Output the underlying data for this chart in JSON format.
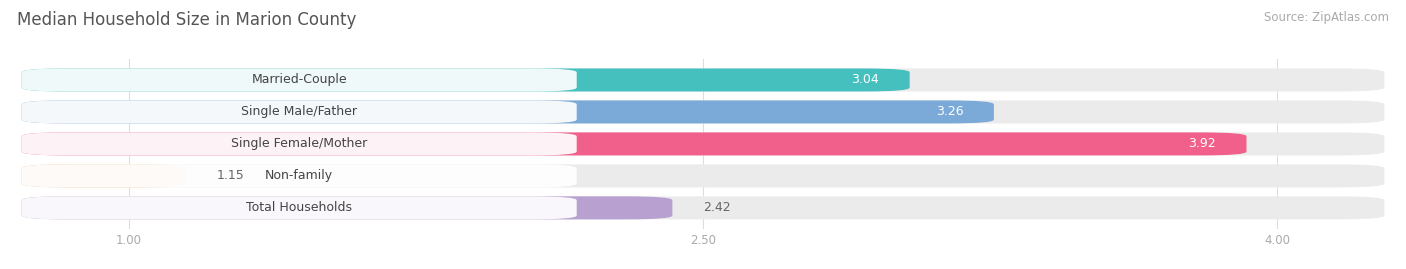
{
  "title": "Median Household Size in Marion County",
  "source": "Source: ZipAtlas.com",
  "categories": [
    "Married-Couple",
    "Single Male/Father",
    "Single Female/Mother",
    "Non-family",
    "Total Households"
  ],
  "values": [
    3.04,
    3.26,
    3.92,
    1.15,
    2.42
  ],
  "bar_colors": [
    "#45c0bf",
    "#7baad8",
    "#f0608a",
    "#f5c8a0",
    "#b8a0d0"
  ],
  "xlim_min": 0.7,
  "xlim_max": 4.3,
  "xticks": [
    1.0,
    2.5,
    4.0
  ],
  "background_color": "#ffffff",
  "bar_bg_color": "#ebebeb",
  "title_fontsize": 12,
  "label_fontsize": 9,
  "value_fontsize": 9,
  "source_fontsize": 8.5
}
